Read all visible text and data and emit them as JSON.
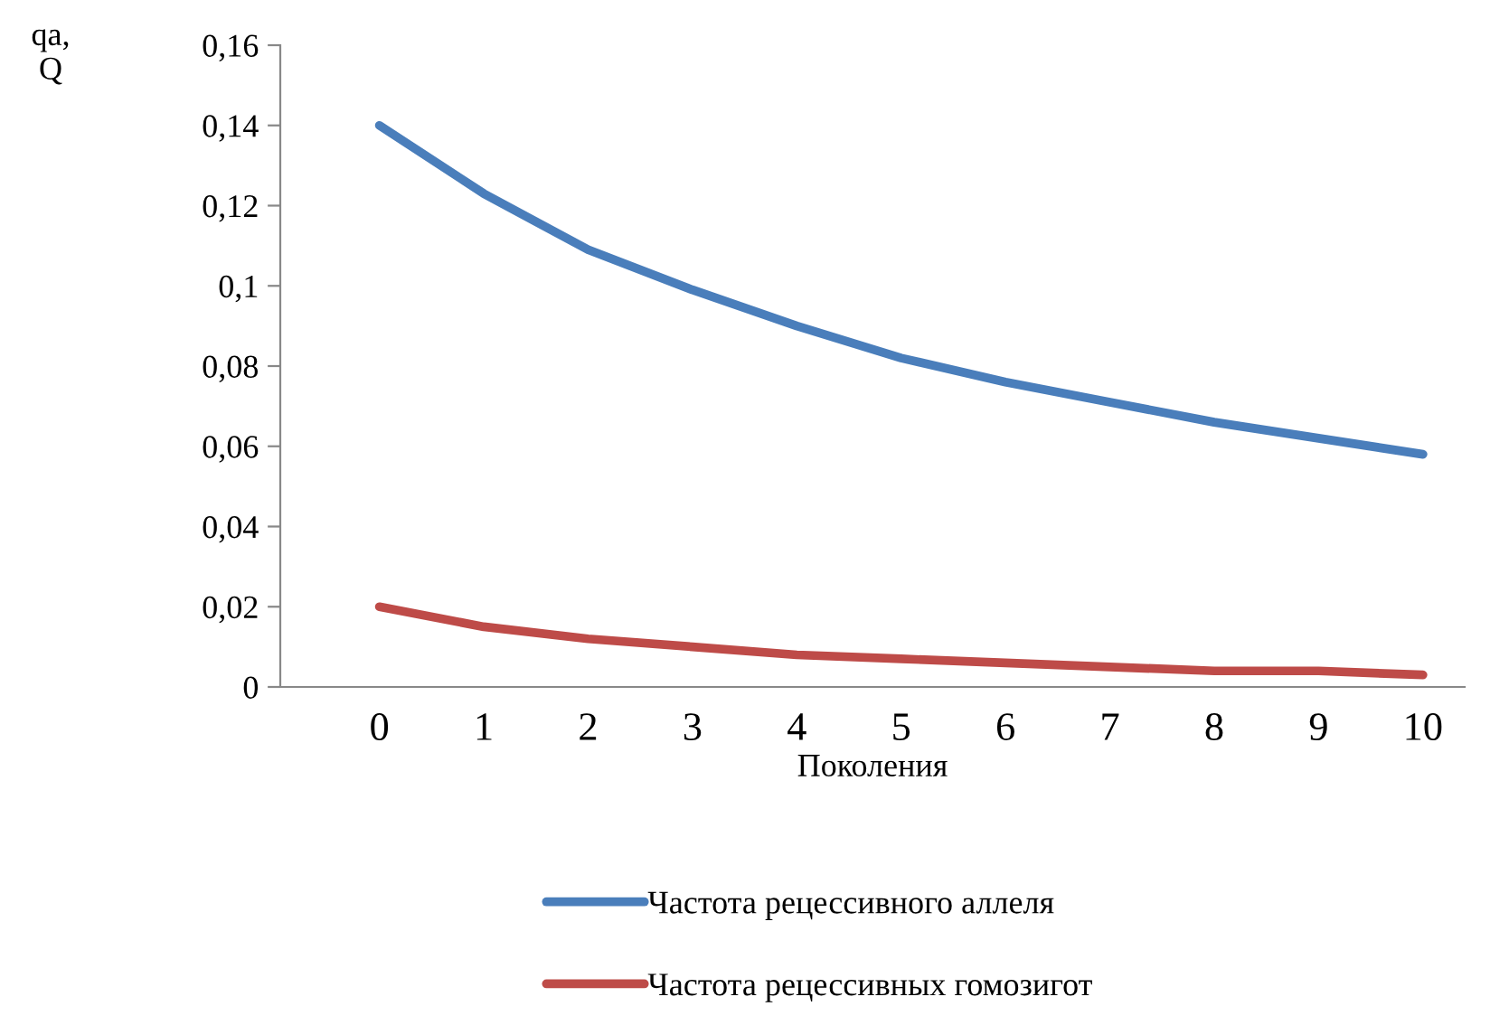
{
  "chart_data": {
    "type": "line",
    "xlabel": "Поколения",
    "ylabel": "qa,\nQ",
    "categories": [
      "0",
      "1",
      "2",
      "3",
      "4",
      "5",
      "6",
      "7",
      "8",
      "9",
      "10"
    ],
    "series": [
      {
        "name": "Частота рецессивного аллеля",
        "color": "#4a7ebb",
        "values": [
          0.14,
          0.123,
          0.109,
          0.099,
          0.09,
          0.082,
          0.076,
          0.071,
          0.066,
          0.062,
          0.058
        ]
      },
      {
        "name": "Частота рецессивных гомозигот",
        "color": "#be4b48",
        "values": [
          0.02,
          0.015,
          0.012,
          0.01,
          0.008,
          0.007,
          0.006,
          0.005,
          0.004,
          0.004,
          0.003
        ]
      }
    ],
    "ylim": [
      0,
      0.16
    ],
    "yticks": [
      {
        "value": 0,
        "label": "0"
      },
      {
        "value": 0.02,
        "label": "0,02"
      },
      {
        "value": 0.04,
        "label": "0,04"
      },
      {
        "value": 0.06,
        "label": "0,06"
      },
      {
        "value": 0.08,
        "label": "0,08"
      },
      {
        "value": 0.1,
        "label": "0,1"
      },
      {
        "value": 0.12,
        "label": "0,12"
      },
      {
        "value": 0.14,
        "label": "0,14"
      },
      {
        "value": 0.16,
        "label": "0,16"
      }
    ],
    "grid": false,
    "legend": "bottom",
    "marker": "none",
    "line_style": "solid"
  }
}
